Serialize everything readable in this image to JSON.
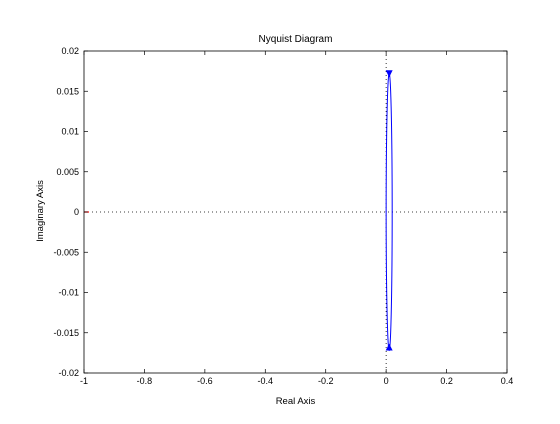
{
  "chart_data": {
    "type": "line",
    "title": "Nyquist Diagram",
    "xlabel": "Real Axis",
    "ylabel": "Imaginary Axis",
    "xlim": [
      -1,
      0.4
    ],
    "ylim": [
      -0.02,
      0.02
    ],
    "xticks": [
      -1,
      -0.8,
      -0.6,
      -0.4,
      -0.2,
      0,
      0.2,
      0.4
    ],
    "xtick_labels": [
      "-1",
      "-0.8",
      "-0.6",
      "-0.4",
      "-0.2",
      "0",
      "0.2",
      "0.4"
    ],
    "yticks": [
      -0.02,
      -0.015,
      -0.01,
      -0.005,
      0,
      0.005,
      0.01,
      0.015,
      0.02
    ],
    "ytick_labels": [
      "-0.02",
      "-0.015",
      "-0.01",
      "-0.005",
      "0",
      "0.005",
      "0.01",
      "0.015",
      "0.02"
    ],
    "grid": false,
    "legend": "none",
    "reference_lines": [
      {
        "orientation": "horizontal",
        "value": 0,
        "style": "dotted"
      },
      {
        "orientation": "vertical",
        "value": 0,
        "style": "dotted"
      }
    ],
    "critical_point": {
      "x": -1,
      "y": 0,
      "marker": "+",
      "color": "#ff0000"
    },
    "series": [
      {
        "color": "#0000ff",
        "curve": "closed-loop-ellipse",
        "center": [
          0.01,
          0
        ],
        "real_halfwidth": 0.01,
        "imag_halfheight": 0.0172,
        "arrows": [
          {
            "x": 0.01,
            "y": 0.0172,
            "direction": "down"
          },
          {
            "x": 0.01,
            "y": -0.0168,
            "direction": "up"
          }
        ]
      }
    ],
    "colors": {
      "curve": "#0000ff",
      "critical": "#ff0000",
      "axes": "#000000"
    }
  }
}
